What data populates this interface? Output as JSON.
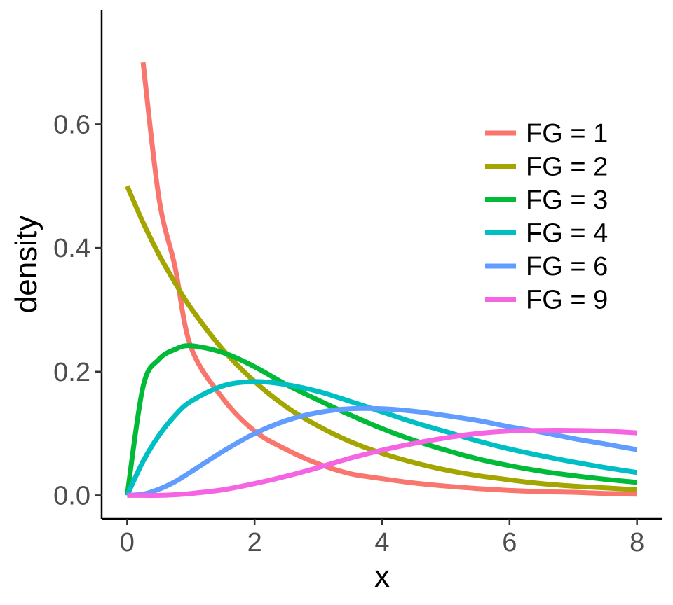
{
  "chart_data": {
    "type": "line",
    "title": "",
    "xlabel": "x",
    "ylabel": "density",
    "xlim": [
      -0.4,
      8.4
    ],
    "ylim": [
      -0.038,
      0.785
    ],
    "xticks": [
      0,
      2,
      4,
      6,
      8
    ],
    "xtick_labels": [
      "0",
      "2",
      "4",
      "6",
      "8"
    ],
    "yticks": [
      0.0,
      0.2,
      0.4,
      0.6
    ],
    "ytick_labels": [
      "0.0",
      "0.2",
      "0.4",
      "0.6"
    ],
    "grid": false,
    "legend_position": "top-right",
    "x": [
      0,
      0.25,
      0.5,
      0.75,
      1,
      1.5,
      2,
      2.5,
      3,
      3.5,
      4,
      4.5,
      5,
      5.5,
      6,
      6.5,
      7,
      7.5,
      8
    ],
    "series": [
      {
        "name": "FG = 1",
        "color": "#F8766D",
        "values": [
          null,
          0.7,
          0.48,
          0.37,
          0.24,
          0.157,
          0.104,
          0.074,
          0.051,
          0.035,
          0.027,
          0.02,
          0.015,
          0.011,
          0.008,
          0.006,
          0.005,
          0.003,
          0.002
        ]
      },
      {
        "name": "FG = 2",
        "color": "#A3A500",
        "values": [
          0.5,
          0.441,
          0.389,
          0.344,
          0.303,
          0.236,
          0.184,
          0.143,
          0.112,
          0.087,
          0.068,
          0.053,
          0.041,
          0.032,
          0.025,
          0.019,
          0.015,
          0.012,
          0.009
        ]
      },
      {
        "name": "FG = 3",
        "color": "#00BA38",
        "values": [
          0.0,
          0.176,
          0.22,
          0.236,
          0.242,
          0.231,
          0.208,
          0.179,
          0.154,
          0.13,
          0.108,
          0.089,
          0.073,
          0.059,
          0.048,
          0.039,
          0.032,
          0.026,
          0.021
        ]
      },
      {
        "name": "FG = 4",
        "color": "#00BFC4",
        "values": [
          0.0,
          0.055,
          0.097,
          0.129,
          0.152,
          0.177,
          0.184,
          0.179,
          0.168,
          0.152,
          0.135,
          0.118,
          0.103,
          0.088,
          0.075,
          0.064,
          0.054,
          0.045,
          0.037
        ]
      },
      {
        "name": "FG = 6",
        "color": "#619CFF",
        "values": [
          0.0,
          0.002,
          0.01,
          0.022,
          0.038,
          0.071,
          0.1,
          0.121,
          0.134,
          0.14,
          0.14,
          0.136,
          0.129,
          0.121,
          0.111,
          0.102,
          0.092,
          0.083,
          0.074
        ]
      },
      {
        "name": "FG = 9",
        "color": "#F564E3",
        "values": [
          0.0,
          0.0,
          0.0,
          0.001,
          0.003,
          0.009,
          0.019,
          0.031,
          0.045,
          0.06,
          0.073,
          0.084,
          0.093,
          0.1,
          0.104,
          0.105,
          0.105,
          0.104,
          0.101
        ]
      }
    ]
  }
}
